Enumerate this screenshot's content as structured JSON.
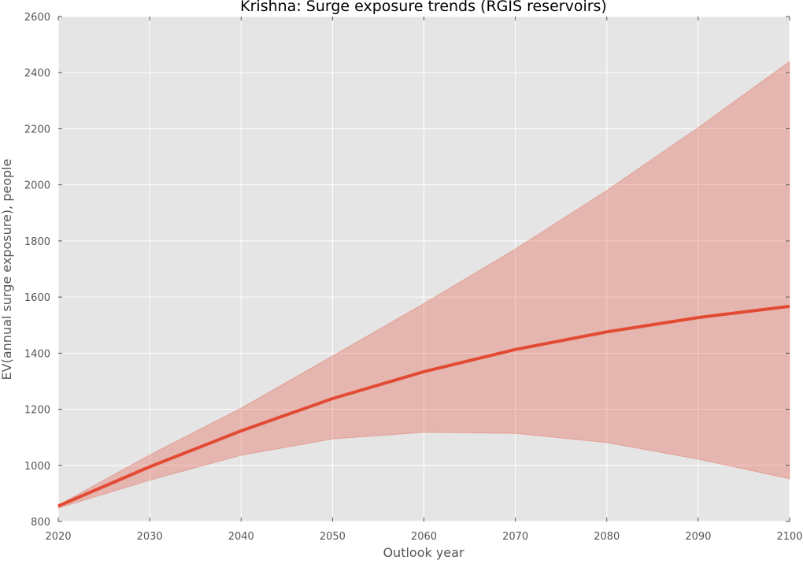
{
  "chart_data": {
    "type": "line",
    "title": "Krishna: Surge exposure trends (RGIS reservoirs)",
    "xlabel": "Outlook year",
    "ylabel": "EV(annual surge exposure), people",
    "xlim": [
      2020,
      2100
    ],
    "ylim": [
      800,
      2600
    ],
    "grid": true,
    "legend": "none",
    "colors": {
      "plot_background": "#e5e5e5",
      "grid": "#ffffff",
      "line": "#e24a33",
      "band": "#e24a33",
      "tick_text": "#555555",
      "axis_text": "#555555",
      "title_text": "#000000"
    },
    "x_ticks": [
      2020,
      2030,
      2040,
      2050,
      2060,
      2070,
      2080,
      2090,
      2100
    ],
    "y_ticks": [
      800,
      1000,
      1200,
      1400,
      1600,
      1800,
      2000,
      2200,
      2400,
      2600
    ],
    "x": [
      2020,
      2030,
      2040,
      2050,
      2060,
      2070,
      2080,
      2090,
      2100
    ],
    "series": [
      {
        "values": [
          855,
          995,
          1123,
          1238,
          1334,
          1413,
          1476,
          1527,
          1567
        ],
        "lower": [
          848,
          947,
          1036,
          1094,
          1118,
          1114,
          1081,
          1022,
          952
        ],
        "upper": [
          858,
          1037,
          1204,
          1390,
          1577,
          1771,
          1980,
          2204,
          2440
        ]
      }
    ]
  }
}
